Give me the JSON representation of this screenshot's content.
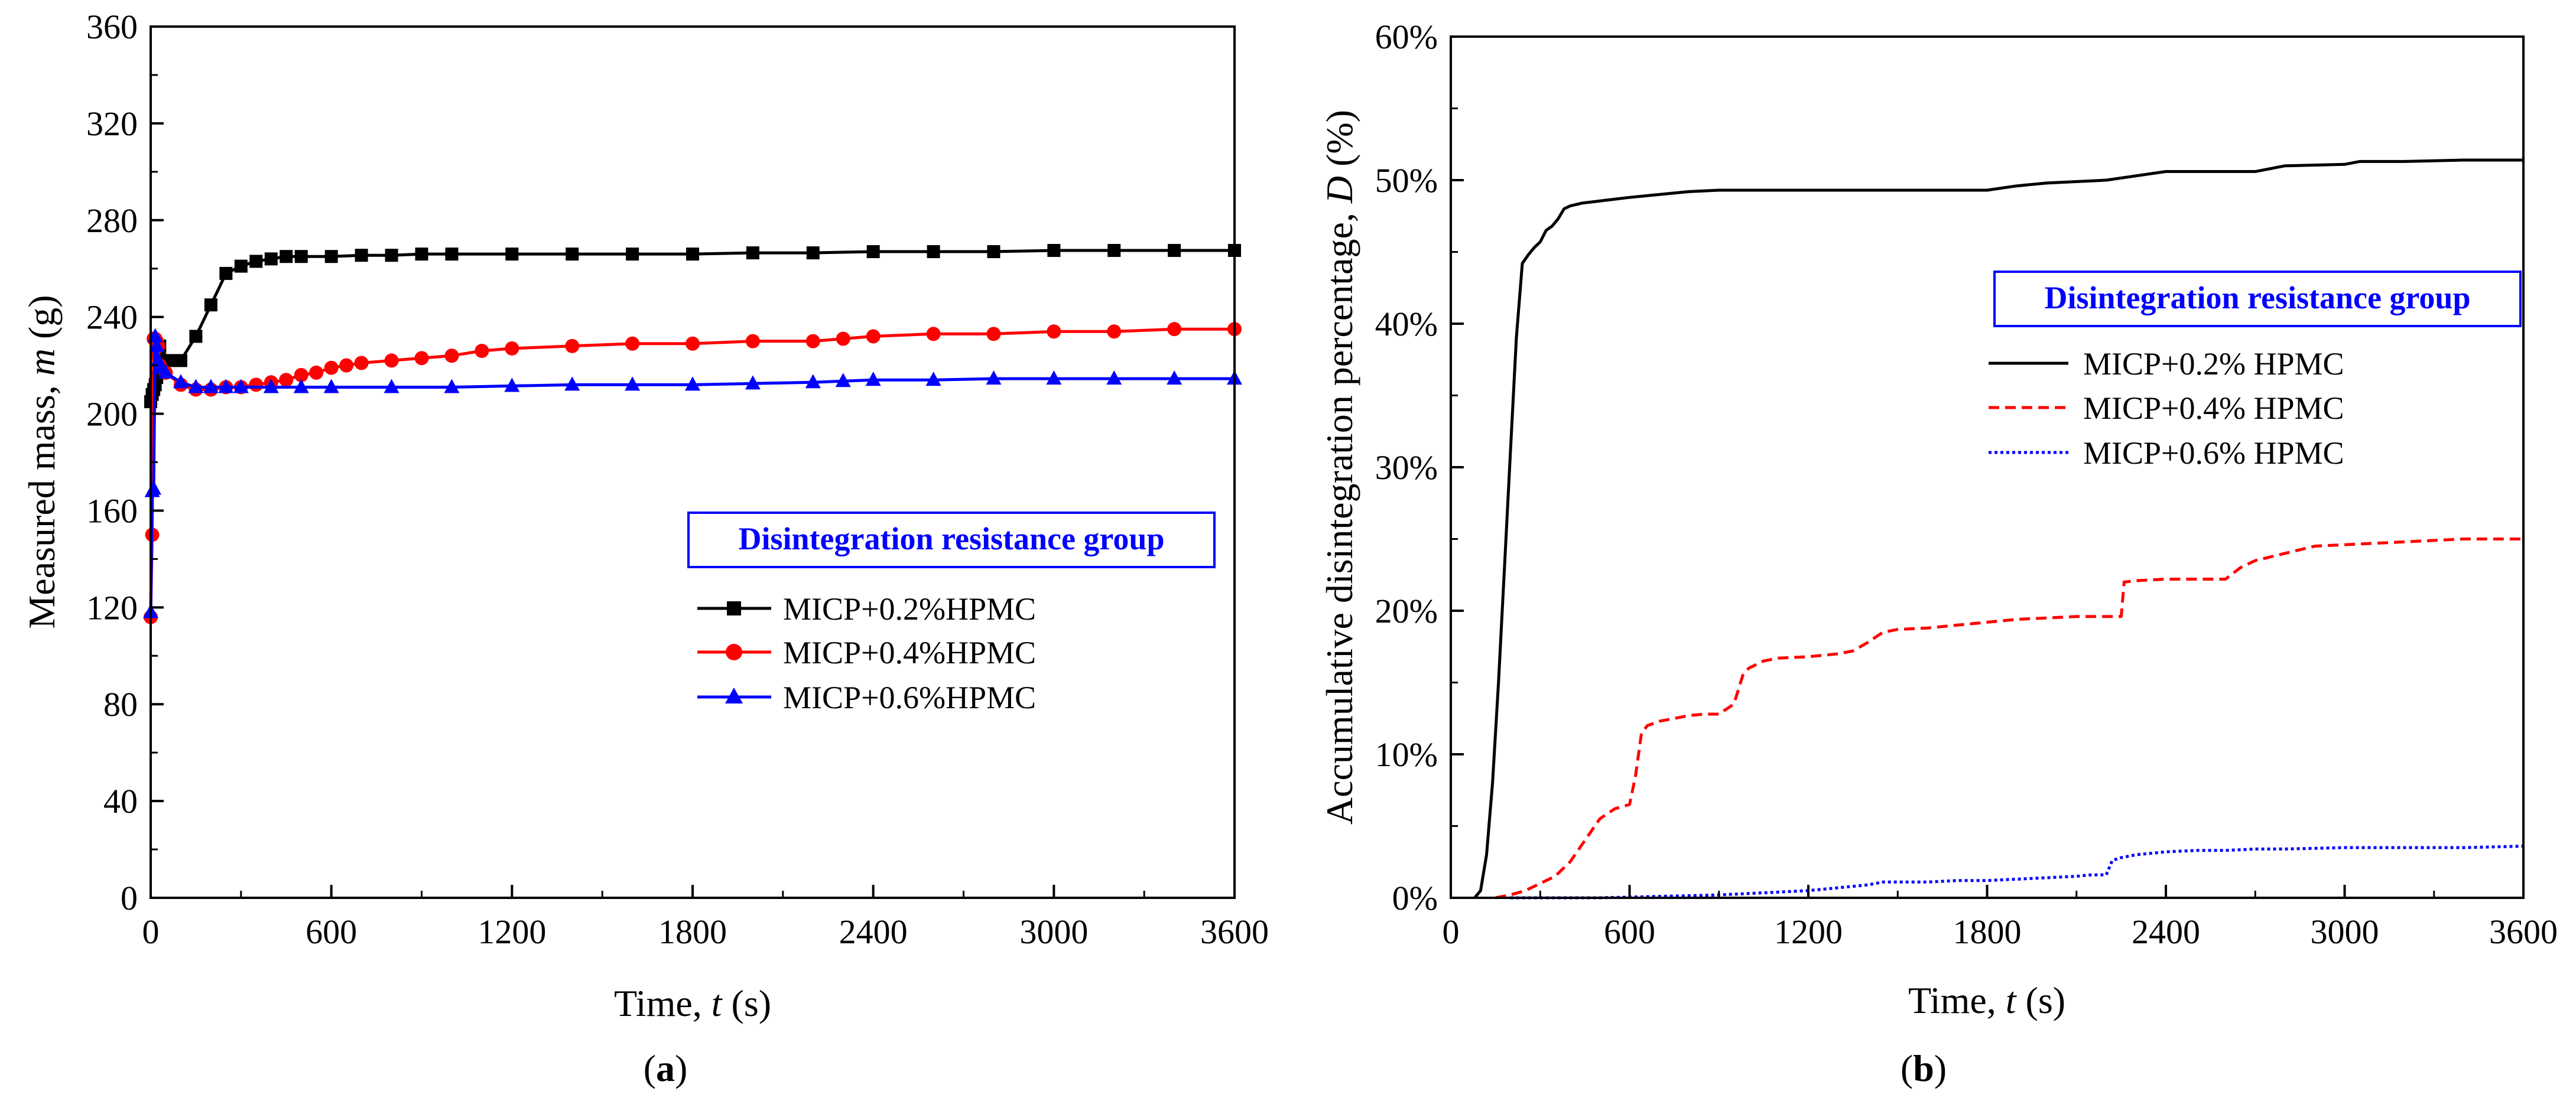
{
  "figure_labels": {
    "a": "a",
    "b": "b"
  },
  "chart_data": [
    {
      "type": "line",
      "panel": "a",
      "xlabel": "Time, t (s)",
      "xlabel_prefix": "Time, ",
      "xlabel_var": "t",
      "xlabel_suffix": " (s)",
      "ylabel": "Measured mass, m (g)",
      "ylabel_prefix": "Measured mass, ",
      "ylabel_var": "m",
      "ylabel_suffix": " (g)",
      "xlim": [
        0,
        3600
      ],
      "ylim": [
        0,
        360
      ],
      "xticks": [
        0,
        600,
        1200,
        1800,
        2400,
        3000,
        3600
      ],
      "yticks": [
        0,
        40,
        80,
        120,
        160,
        200,
        240,
        280,
        320,
        360
      ],
      "xtick_labels": [
        "0",
        "600",
        "1200",
        "1800",
        "2400",
        "3000",
        "3600"
      ],
      "ytick_labels": [
        "0",
        "40",
        "80",
        "120",
        "160",
        "200",
        "240",
        "280",
        "320",
        "360"
      ],
      "legend_title": "Disintegration resistance group",
      "legend_position": "middle-right",
      "grid": false,
      "series": [
        {
          "name": "MICP+0.2%HPMC",
          "color": "#000000",
          "marker": "square",
          "line_style": "solid",
          "x": [
            0,
            5,
            10,
            15,
            20,
            25,
            30,
            60,
            100,
            150,
            200,
            250,
            300,
            350,
            400,
            450,
            500,
            600,
            700,
            800,
            900,
            1000,
            1200,
            1400,
            1600,
            1800,
            2000,
            2200,
            2400,
            2600,
            2800,
            3000,
            3200,
            3400,
            3600
          ],
          "y": [
            205,
            208,
            210,
            212,
            215,
            225,
            228,
            222,
            222,
            232,
            245,
            258,
            261,
            263,
            264,
            265,
            265,
            265,
            265.5,
            265.5,
            266,
            266,
            266,
            266,
            266,
            266,
            266.5,
            266.5,
            267,
            267,
            267,
            267.5,
            267.5,
            267.5,
            267.5
          ]
        },
        {
          "name": "MICP+0.4%HPMC",
          "color": "#ff0000",
          "marker": "circle",
          "line_style": "solid",
          "x": [
            0,
            5,
            10,
            15,
            20,
            25,
            30,
            50,
            100,
            150,
            200,
            250,
            300,
            350,
            400,
            450,
            500,
            550,
            600,
            650,
            700,
            800,
            900,
            1000,
            1100,
            1200,
            1400,
            1600,
            1800,
            2000,
            2200,
            2300,
            2400,
            2600,
            2800,
            3000,
            3200,
            3400,
            3600
          ],
          "y": [
            116,
            150,
            231,
            231,
            230,
            228,
            220,
            217,
            212,
            210,
            210,
            211,
            211,
            212,
            213,
            214,
            216,
            217,
            219,
            220,
            221,
            222,
            223,
            224,
            226,
            227,
            228,
            229,
            229,
            230,
            230,
            231,
            232,
            233,
            233,
            234,
            234,
            235,
            235
          ]
        },
        {
          "name": "MICP+0.6%HPMC",
          "color": "#0000ff",
          "marker": "triangle",
          "line_style": "solid",
          "x": [
            0,
            5,
            10,
            15,
            20,
            25,
            30,
            50,
            100,
            150,
            200,
            250,
            300,
            400,
            500,
            600,
            800,
            1000,
            1200,
            1400,
            1600,
            1800,
            2000,
            2200,
            2300,
            2400,
            2600,
            2800,
            3000,
            3200,
            3400,
            3600
          ],
          "y": [
            118,
            168,
            169,
            232,
            228,
            222,
            219,
            217,
            213,
            211,
            211,
            211,
            211,
            211,
            211,
            211,
            211,
            211,
            211.5,
            212,
            212,
            212,
            212.5,
            213,
            213.5,
            214,
            214,
            214.5,
            214.5,
            214.5,
            214.5,
            214.5
          ]
        }
      ]
    },
    {
      "type": "line",
      "panel": "b",
      "xlabel": "Time, t (s)",
      "xlabel_prefix": "Time, ",
      "xlabel_var": "t",
      "xlabel_suffix": " (s)",
      "ylabel": "Accumulative disintegration percentage, D (%)",
      "ylabel_prefix": "Accumulative disintegration percentage, ",
      "ylabel_var": "D",
      "ylabel_suffix": " (%)",
      "xlim": [
        0,
        3600
      ],
      "ylim": [
        0,
        60
      ],
      "xticks": [
        0,
        600,
        1200,
        1800,
        2400,
        3000,
        3600
      ],
      "yticks": [
        0,
        10,
        20,
        30,
        40,
        50,
        60
      ],
      "xtick_labels": [
        "0",
        "600",
        "1200",
        "1800",
        "2400",
        "3000",
        "3600"
      ],
      "ytick_labels": [
        "0%",
        "10%",
        "20%",
        "30%",
        "40%",
        "50%",
        "60%"
      ],
      "legend_title": "Disintegration resistance group",
      "legend_position": "upper-right",
      "grid": false,
      "series": [
        {
          "name": "MICP+0.2% HPMC",
          "color": "#000000",
          "line_style": "solid",
          "x": [
            80,
            100,
            120,
            140,
            160,
            180,
            200,
            220,
            240,
            260,
            280,
            300,
            320,
            340,
            360,
            380,
            400,
            420,
            440,
            480,
            520,
            560,
            600,
            650,
            700,
            800,
            900,
            1000,
            1200,
            1400,
            1600,
            1800,
            1900,
            2000,
            2200,
            2300,
            2400,
            2700,
            2800,
            3000,
            3050,
            3200,
            3400,
            3600
          ],
          "y": [
            0,
            0.5,
            3,
            8,
            15,
            23,
            31,
            39,
            44.2,
            44.8,
            45.3,
            45.7,
            46.5,
            46.8,
            47.3,
            48,
            48.2,
            48.3,
            48.4,
            48.5,
            48.6,
            48.7,
            48.8,
            48.9,
            49,
            49.2,
            49.3,
            49.3,
            49.3,
            49.3,
            49.3,
            49.3,
            49.6,
            49.8,
            50,
            50.3,
            50.6,
            50.6,
            51,
            51.1,
            51.3,
            51.3,
            51.4,
            51.4
          ]
        },
        {
          "name": "MICP+0.4% HPMC",
          "color": "#ff0000",
          "line_style": "dashed",
          "x": [
            150,
            200,
            250,
            300,
            350,
            400,
            450,
            500,
            550,
            600,
            620,
            640,
            660,
            700,
            750,
            800,
            850,
            900,
            950,
            980,
            1000,
            1050,
            1100,
            1200,
            1300,
            1350,
            1400,
            1450,
            1500,
            1600,
            1700,
            1800,
            1850,
            1900,
            2000,
            2100,
            2200,
            2250,
            2260,
            2300,
            2400,
            2500,
            2600,
            2650,
            2700,
            2800,
            2900,
            3000,
            3200,
            3400,
            3600
          ],
          "y": [
            0,
            0.2,
            0.5,
            1,
            1.5,
            2.5,
            4,
            5.5,
            6.2,
            6.5,
            8.5,
            11.5,
            12,
            12.3,
            12.5,
            12.7,
            12.8,
            12.8,
            13.5,
            15.5,
            16,
            16.5,
            16.7,
            16.8,
            17,
            17.2,
            17.8,
            18.5,
            18.7,
            18.8,
            19,
            19.2,
            19.3,
            19.4,
            19.5,
            19.6,
            19.6,
            19.6,
            22,
            22.1,
            22.2,
            22.2,
            22.2,
            23,
            23.5,
            24,
            24.5,
            24.6,
            24.8,
            25,
            25
          ]
        },
        {
          "name": "MICP+0.6% HPMC",
          "color": "#0000ff",
          "line_style": "dotted",
          "x": [
            200,
            300,
            400,
            500,
            600,
            700,
            800,
            900,
            1000,
            1100,
            1200,
            1300,
            1400,
            1450,
            1500,
            1600,
            1700,
            1800,
            1900,
            2000,
            2100,
            2150,
            2200,
            2220,
            2250,
            2300,
            2400,
            2500,
            2600,
            2700,
            2800,
            3000,
            3200,
            3400,
            3600
          ],
          "y": [
            0,
            0,
            0,
            0,
            0.05,
            0.1,
            0.15,
            0.2,
            0.3,
            0.4,
            0.5,
            0.7,
            0.9,
            1.1,
            1.1,
            1.1,
            1.2,
            1.2,
            1.3,
            1.4,
            1.5,
            1.6,
            1.6,
            2.6,
            2.8,
            3,
            3.2,
            3.3,
            3.3,
            3.4,
            3.4,
            3.5,
            3.5,
            3.5,
            3.6
          ]
        }
      ]
    }
  ]
}
